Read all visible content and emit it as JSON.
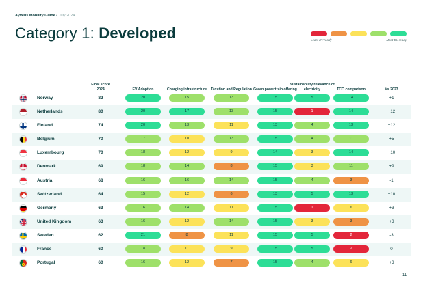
{
  "header": {
    "brand": "Ayvens Mobility Guide",
    "separator": " • ",
    "date": "July 2024"
  },
  "title": {
    "prefix": "Category 1: ",
    "emphasis": "Developed"
  },
  "legend": {
    "colors": [
      "#e3263a",
      "#ef9345",
      "#fce259",
      "#9ee06a",
      "#2ddd96"
    ],
    "least_label": "Least EV ready",
    "most_label": "Most EV ready"
  },
  "columns": {
    "final": "Final score 2024",
    "ev": "EV Adoption",
    "charging": "Charging infrastructure",
    "tax": "Taxation and Regulation",
    "green": "Green powertrain offering",
    "sustain": "Sustainability relevance of electricity",
    "tco": "TCO comparison",
    "vs": "Vs 2023"
  },
  "score_colors": {
    "red": "#e3263a",
    "orange": "#ef9345",
    "yellow": "#fce259",
    "lightgreen": "#9ee06a",
    "green": "#2ddd96"
  },
  "rows": [
    {
      "country": "Norway",
      "flag": "norway-flag-icon",
      "final": "82",
      "scores": [
        [
          "20",
          "green"
        ],
        [
          "15",
          "lightgreen"
        ],
        [
          "13",
          "lightgreen"
        ],
        [
          "15",
          "green"
        ],
        [
          "5",
          "green"
        ],
        [
          "14",
          "green"
        ]
      ],
      "vs": "+1"
    },
    {
      "country": "Netherlands",
      "flag": "netherlands-flag-icon",
      "final": "80",
      "scores": [
        [
          "20",
          "green"
        ],
        [
          "17",
          "green"
        ],
        [
          "13",
          "lightgreen"
        ],
        [
          "15",
          "green"
        ],
        [
          "1",
          "red"
        ],
        [
          "14",
          "green"
        ]
      ],
      "vs": "+12"
    },
    {
      "country": "Finland",
      "flag": "finland-flag-icon",
      "final": "74",
      "scores": [
        [
          "20",
          "green"
        ],
        [
          "13",
          "lightgreen"
        ],
        [
          "11",
          "yellow"
        ],
        [
          "13",
          "green"
        ],
        [
          "4",
          "lightgreen"
        ],
        [
          "13",
          "green"
        ]
      ],
      "vs": "+12"
    },
    {
      "country": "Belgium",
      "flag": "belgium-flag-icon",
      "final": "70",
      "scores": [
        [
          "17",
          "lightgreen"
        ],
        [
          "10",
          "yellow"
        ],
        [
          "13",
          "lightgreen"
        ],
        [
          "15",
          "green"
        ],
        [
          "4",
          "lightgreen"
        ],
        [
          "11",
          "lightgreen"
        ]
      ],
      "vs": "+5"
    },
    {
      "country": "Luxembourg",
      "flag": "luxembourg-flag-icon",
      "final": "70",
      "scores": [
        [
          "18",
          "lightgreen"
        ],
        [
          "12",
          "yellow"
        ],
        [
          "9",
          "yellow"
        ],
        [
          "14",
          "green"
        ],
        [
          "3",
          "yellow"
        ],
        [
          "14",
          "green"
        ]
      ],
      "vs": "+10"
    },
    {
      "country": "Denmark",
      "flag": "denmark-flag-icon",
      "final": "69",
      "scores": [
        [
          "18",
          "lightgreen"
        ],
        [
          "14",
          "lightgreen"
        ],
        [
          "8",
          "orange"
        ],
        [
          "15",
          "green"
        ],
        [
          "3",
          "yellow"
        ],
        [
          "11",
          "lightgreen"
        ]
      ],
      "vs": "+9"
    },
    {
      "country": "Austria",
      "flag": "austria-flag-icon",
      "final": "68",
      "scores": [
        [
          "16",
          "lightgreen"
        ],
        [
          "16",
          "lightgreen"
        ],
        [
          "14",
          "lightgreen"
        ],
        [
          "15",
          "green"
        ],
        [
          "4",
          "lightgreen"
        ],
        [
          "3",
          "orange"
        ]
      ],
      "vs": "-1"
    },
    {
      "country": "Switzerland",
      "flag": "switzerland-flag-icon",
      "final": "64",
      "scores": [
        [
          "15",
          "lightgreen"
        ],
        [
          "12",
          "yellow"
        ],
        [
          "6",
          "orange"
        ],
        [
          "13",
          "green"
        ],
        [
          "5",
          "green"
        ],
        [
          "13",
          "green"
        ]
      ],
      "vs": "+10"
    },
    {
      "country": "Germany",
      "flag": "germany-flag-icon",
      "final": "63",
      "scores": [
        [
          "16",
          "lightgreen"
        ],
        [
          "14",
          "lightgreen"
        ],
        [
          "11",
          "yellow"
        ],
        [
          "15",
          "green"
        ],
        [
          "1",
          "red"
        ],
        [
          "6",
          "yellow"
        ]
      ],
      "vs": "+3"
    },
    {
      "country": "United Kingdom",
      "flag": "uk-flag-icon",
      "final": "63",
      "scores": [
        [
          "16",
          "lightgreen"
        ],
        [
          "12",
          "yellow"
        ],
        [
          "14",
          "lightgreen"
        ],
        [
          "15",
          "green"
        ],
        [
          "3",
          "yellow"
        ],
        [
          "3",
          "orange"
        ]
      ],
      "vs": "+3"
    },
    {
      "country": "Sweden",
      "flag": "sweden-flag-icon",
      "final": "62",
      "scores": [
        [
          "21",
          "green"
        ],
        [
          "8",
          "orange"
        ],
        [
          "11",
          "yellow"
        ],
        [
          "15",
          "green"
        ],
        [
          "5",
          "green"
        ],
        [
          "2",
          "red"
        ]
      ],
      "vs": "-3"
    },
    {
      "country": "France",
      "flag": "france-flag-icon",
      "final": "60",
      "scores": [
        [
          "18",
          "lightgreen"
        ],
        [
          "11",
          "yellow"
        ],
        [
          "9",
          "yellow"
        ],
        [
          "15",
          "green"
        ],
        [
          "5",
          "green"
        ],
        [
          "2",
          "red"
        ]
      ],
      "vs": "0"
    },
    {
      "country": "Portugal",
      "flag": "portugal-flag-icon",
      "final": "60",
      "scores": [
        [
          "16",
          "lightgreen"
        ],
        [
          "12",
          "yellow"
        ],
        [
          "7",
          "orange"
        ],
        [
          "15",
          "green"
        ],
        [
          "4",
          "lightgreen"
        ],
        [
          "6",
          "yellow"
        ]
      ],
      "vs": "+3"
    }
  ],
  "page_number": "11"
}
